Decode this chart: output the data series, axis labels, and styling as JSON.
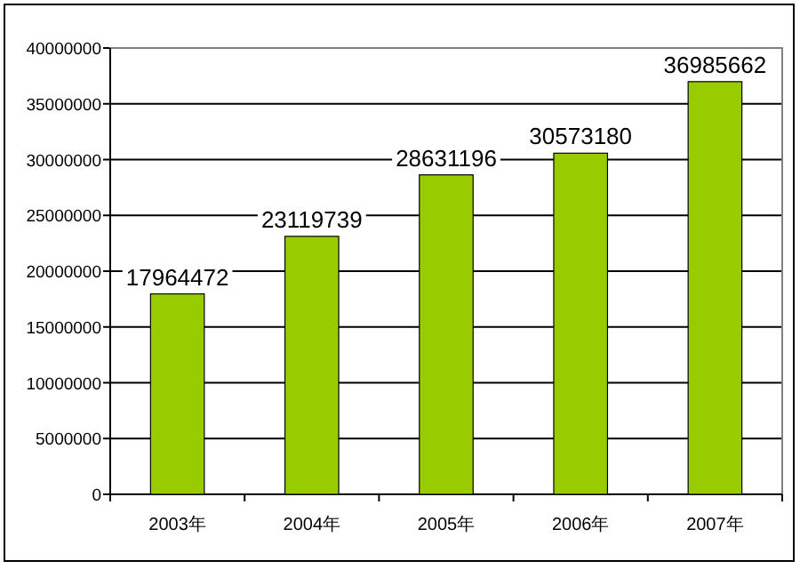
{
  "chart_data": {
    "type": "bar",
    "categories": [
      "2003年",
      "2004年",
      "2005年",
      "2006年",
      "2007年"
    ],
    "values": [
      17964472,
      23119739,
      28631196,
      30573180,
      36985662
    ],
    "color": "#99cc00",
    "ylim": [
      0,
      40000000
    ],
    "yticks": [
      0,
      5000000,
      10000000,
      15000000,
      20000000,
      25000000,
      30000000,
      35000000,
      40000000
    ],
    "grid": "y",
    "data_labels": true
  }
}
